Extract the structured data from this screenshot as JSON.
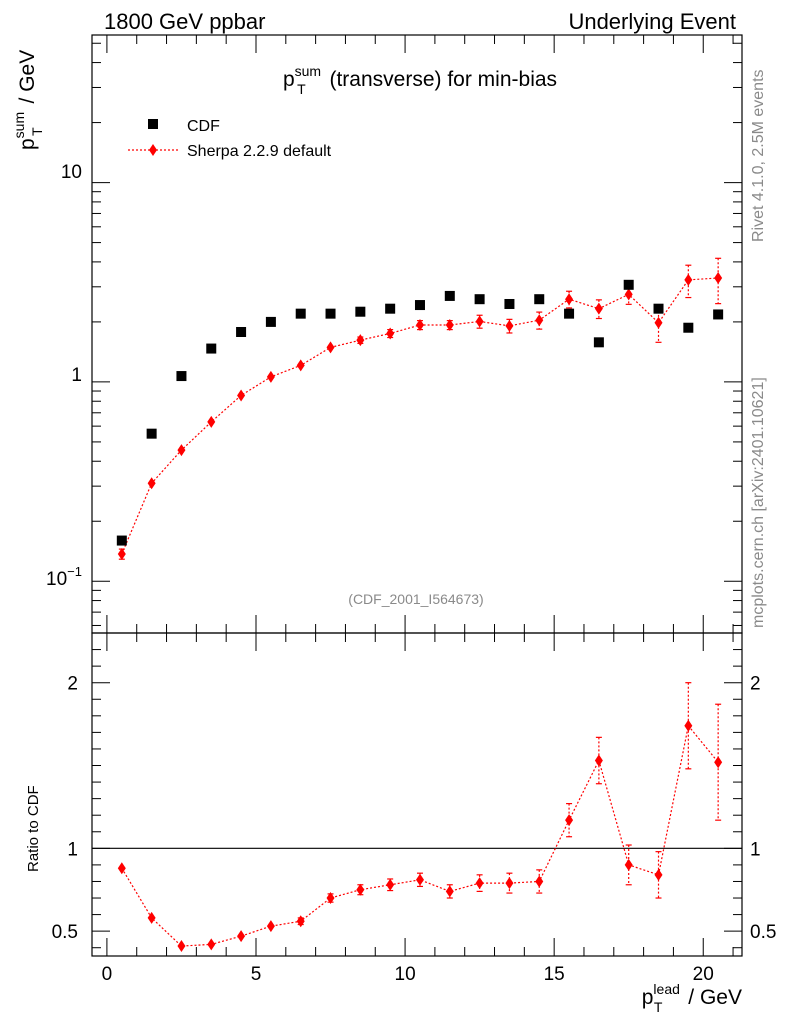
{
  "header": {
    "left": "1800 GeV ppbar",
    "right": "Underlying Event"
  },
  "side_text": {
    "rivet": "Rivet 4.1.0,  2.5M events",
    "site": "mcplots.cern.ch [arXiv:2401.10621]"
  },
  "colors": {
    "data": "#000000",
    "mc": "#ff0000",
    "grey": "#8a8a8a"
  },
  "chart_data": [
    {
      "type": "scatter",
      "panel": "main",
      "title": "p_T^sum (transverse) for min-bias",
      "title_parts": {
        "p": "p",
        "sup": "sum",
        "sub": "T",
        "rest": "(transverse) for min-bias"
      },
      "ylabel": "p_T^sum / GeV",
      "ylabel_parts": {
        "p": "p",
        "sup": "sum",
        "sub": "T",
        "rest": "/ GeV"
      },
      "yscale": "log",
      "ylim": [
        0.055,
        55
      ],
      "xlim": [
        -0.5,
        21.3
      ],
      "yticks_major": [
        {
          "value": 0.1,
          "label_base": "10",
          "label_exp": "−1"
        },
        {
          "value": 1,
          "label": "1"
        },
        {
          "value": 10,
          "label": "10"
        }
      ],
      "watermark": "(CDF_2001_I564673)",
      "legend": {
        "placement": "top-left",
        "entries": [
          "CDF",
          "Sherpa 2.2.9 default"
        ]
      },
      "series": [
        {
          "name": "CDF",
          "marker": "square",
          "x": [
            0.5,
            1.5,
            2.5,
            3.5,
            4.5,
            5.5,
            6.5,
            7.5,
            8.5,
            9.5,
            10.5,
            11.5,
            12.5,
            13.5,
            14.5,
            15.5,
            16.5,
            17.5,
            18.5,
            19.5,
            20.5
          ],
          "y": [
            0.16,
            0.55,
            1.07,
            1.47,
            1.78,
            2.0,
            2.2,
            2.2,
            2.25,
            2.33,
            2.43,
            2.7,
            2.6,
            2.46,
            2.6,
            2.2,
            1.58,
            3.07,
            2.33,
            1.87,
            2.18
          ]
        },
        {
          "name": "Sherpa 2.2.9 default",
          "marker": "diamond",
          "line": "dotted",
          "x": [
            0.5,
            1.5,
            2.5,
            3.5,
            4.5,
            5.5,
            6.5,
            7.5,
            8.5,
            9.5,
            10.5,
            11.5,
            12.5,
            13.5,
            14.5,
            15.5,
            16.5,
            17.5,
            18.5,
            19.5,
            20.5
          ],
          "y": [
            0.137,
            0.31,
            0.455,
            0.63,
            0.855,
            1.06,
            1.21,
            1.49,
            1.62,
            1.75,
            1.93,
            1.93,
            2.01,
            1.91,
            2.04,
            2.6,
            2.33,
            2.75,
            1.98,
            3.25,
            3.32
          ],
          "err": [
            0.008,
            0.01,
            0.015,
            0.02,
            0.025,
            0.03,
            0.04,
            0.05,
            0.06,
            0.08,
            0.1,
            0.1,
            0.15,
            0.15,
            0.2,
            0.25,
            0.25,
            0.3,
            0.4,
            0.6,
            0.85
          ]
        }
      ]
    },
    {
      "type": "line",
      "panel": "ratio",
      "ylabel": "Ratio to CDF",
      "xlabel": "p_T^lead / GeV",
      "xlabel_parts": {
        "p": "p",
        "sup": "lead",
        "sub": "T",
        "rest": "/ GeV"
      },
      "ylim": [
        0.35,
        2.3
      ],
      "xlim": [
        -0.5,
        21.3
      ],
      "yticks_major": [
        0.5,
        1,
        2
      ],
      "ytick_labels": [
        "0.5",
        "1",
        "2"
      ],
      "xticks_major": [
        0,
        5,
        10,
        15,
        20
      ],
      "xtick_labels": [
        "0",
        "5",
        "10",
        "15",
        "20"
      ],
      "reference_line": 1,
      "series": [
        {
          "name": "Sherpa 2.2.9 default / CDF",
          "x": [
            0.5,
            1.5,
            2.5,
            3.5,
            4.5,
            5.5,
            6.5,
            7.5,
            8.5,
            9.5,
            10.5,
            11.5,
            12.5,
            13.5,
            14.5,
            15.5,
            16.5,
            17.5,
            18.5,
            19.5,
            20.5
          ],
          "y": [
            0.88,
            0.58,
            0.41,
            0.42,
            0.47,
            0.53,
            0.56,
            0.7,
            0.75,
            0.78,
            0.81,
            0.74,
            0.79,
            0.79,
            0.8,
            1.17,
            1.53,
            0.9,
            0.84,
            1.74,
            1.52
          ],
          "err": [
            0.015,
            0.015,
            0.015,
            0.015,
            0.015,
            0.015,
            0.02,
            0.025,
            0.03,
            0.035,
            0.04,
            0.04,
            0.05,
            0.06,
            0.07,
            0.1,
            0.14,
            0.12,
            0.14,
            0.26,
            0.35
          ]
        }
      ]
    }
  ]
}
